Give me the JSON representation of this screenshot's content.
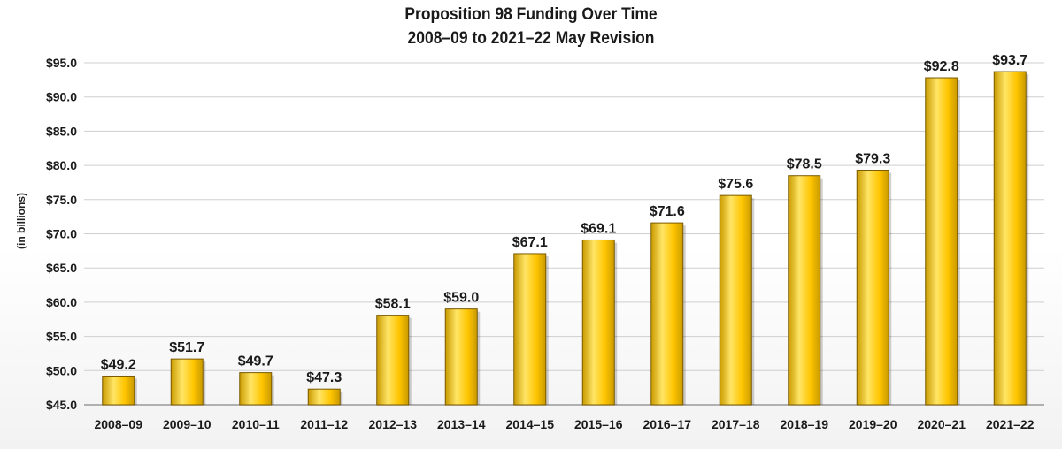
{
  "chart_data": {
    "type": "bar",
    "title_lines": [
      "Proposition 98 Funding Over Time",
      "2008–09 to 2021–22 May Revision"
    ],
    "xlabel": "",
    "ylabel": "(in billions)",
    "ylim": [
      45,
      95
    ],
    "yticks": [
      45,
      50,
      55,
      60,
      65,
      70,
      75,
      80,
      85,
      90,
      95
    ],
    "ytick_labels": [
      "$45.0",
      "$50.0",
      "$55.0",
      "$60.0",
      "$65.0",
      "$70.0",
      "$75.0",
      "$80.0",
      "$85.0",
      "$90.0",
      "$95.0"
    ],
    "categories": [
      "2008–09",
      "2009–10",
      "2010–11",
      "2011–12",
      "2012–13",
      "2013–14",
      "2014–15",
      "2015–16",
      "2016–17",
      "2017–18",
      "2018–19",
      "2019–20",
      "2020–21",
      "2021–22"
    ],
    "values": [
      49.2,
      51.7,
      49.7,
      47.3,
      58.1,
      59.0,
      67.1,
      69.1,
      71.6,
      75.6,
      78.5,
      79.3,
      92.8,
      93.7
    ],
    "value_labels": [
      "$49.2",
      "$51.7",
      "$49.7",
      "$47.3",
      "$58.1",
      "$59.0",
      "$67.1",
      "$69.1",
      "$71.6",
      "$75.6",
      "$78.5",
      "$79.3",
      "$92.8",
      "$93.7"
    ],
    "grid": true,
    "legend": "none",
    "colors": {
      "bar_fill": "#ffc500",
      "bar_light": "#ffe566",
      "bar_dark": "#c99a00",
      "bar_edge": "#7a5a00",
      "gridline": "#cfcfcf",
      "text": "#1a1a1a"
    }
  }
}
